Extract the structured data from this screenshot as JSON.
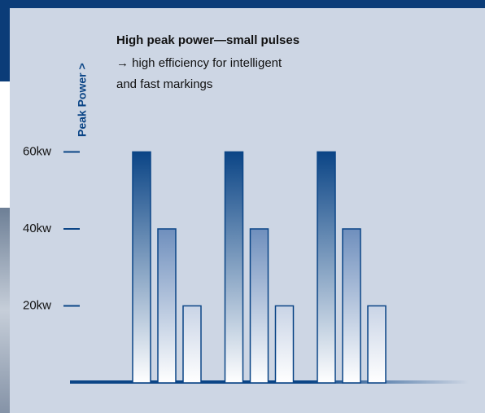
{
  "chart_data": {
    "type": "bar",
    "title": "High peak power—small pulses",
    "annotations": [
      "→ high efficiency for intelligent",
      "and fast markings"
    ],
    "y_label": "Peak Power >",
    "categories": [
      null,
      null,
      null
    ],
    "series": [
      {
        "color": "#0b4586",
        "values": [
          60,
          60,
          60
        ]
      },
      {
        "color": "#6f8fbd",
        "values": [
          40,
          40,
          40
        ]
      },
      {
        "color": "#c9d4e6",
        "values": [
          20,
          20,
          20
        ]
      }
    ],
    "ylim": [
      0,
      80
    ],
    "yticks": [
      {
        "value": 20,
        "label": "20kw"
      },
      {
        "value": 40,
        "label": "40kw"
      },
      {
        "value": 60,
        "label": "60kw"
      }
    ]
  }
}
